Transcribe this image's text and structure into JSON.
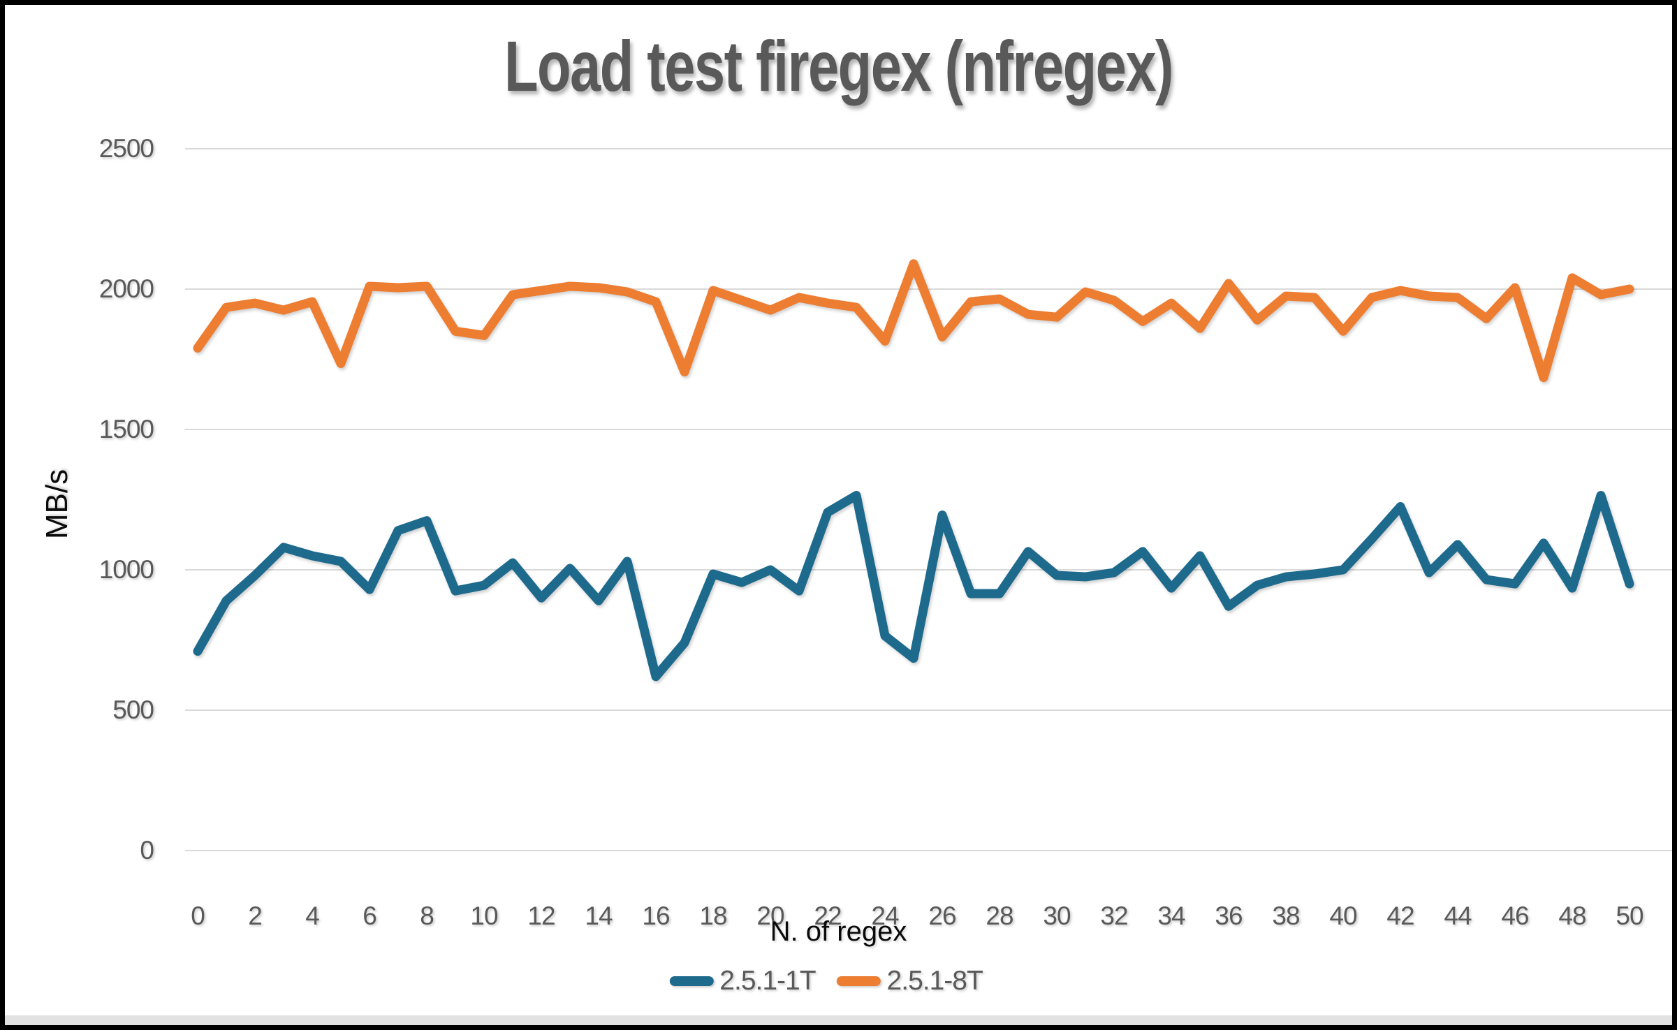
{
  "title": "Load test firegex (nfregex)",
  "axes": {
    "y_title": "MB/s",
    "x_title": "N. of regex"
  },
  "legend": {
    "item1": "2.5.1-1T",
    "item2": "2.5.1-8T"
  },
  "colors": {
    "teal_series": "#1E6A8D",
    "orange_series": "#ED7D31",
    "title_text": "#595959",
    "tick_text": "#595959",
    "axis_title_text": "#0a0a0a",
    "gridline": "#D9D9D9"
  },
  "chart_data": {
    "type": "line",
    "title": "Load test firegex (nfregex)",
    "xlabel": "N. of regex",
    "ylabel": "MB/s",
    "x_start": 0,
    "x_end": 50,
    "x_tick_step": 2,
    "x_tick_labels": [
      "0",
      "2",
      "4",
      "6",
      "8",
      "10",
      "12",
      "14",
      "16",
      "18",
      "20",
      "22",
      "24",
      "26",
      "28",
      "30",
      "32",
      "34",
      "36",
      "38",
      "40",
      "42",
      "44",
      "46",
      "48",
      "50"
    ],
    "y_ticks": [
      0,
      500,
      1000,
      1500,
      2000,
      2500
    ],
    "ylim": [
      0,
      2500
    ],
    "grid": "horizontal",
    "legend_position": "bottom",
    "series": [
      {
        "name": "2.5.1-1T",
        "color": "#1E6A8D",
        "values": [
          710,
          890,
          980,
          1080,
          1050,
          1030,
          930,
          1140,
          1175,
          925,
          945,
          1025,
          900,
          1005,
          890,
          1030,
          620,
          740,
          985,
          955,
          1000,
          925,
          1205,
          1265,
          765,
          685,
          1195,
          915,
          915,
          1065,
          980,
          975,
          990,
          1065,
          935,
          1050,
          870,
          945,
          975,
          985,
          1000,
          1110,
          1225,
          990,
          1090,
          965,
          950,
          1095,
          935,
          1265,
          950
        ]
      },
      {
        "name": "2.5.1-8T",
        "color": "#ED7D31",
        "values": [
          1790,
          1935,
          1950,
          1925,
          1955,
          1735,
          2010,
          2005,
          2010,
          1850,
          1835,
          1980,
          1995,
          2010,
          2005,
          1990,
          1955,
          1705,
          1995,
          1960,
          1925,
          1970,
          1950,
          1935,
          1815,
          2090,
          1830,
          1955,
          1965,
          1910,
          1900,
          1990,
          1960,
          1885,
          1950,
          1860,
          2020,
          1890,
          1975,
          1970,
          1850,
          1970,
          1995,
          1975,
          1970,
          1895,
          2005,
          1685,
          2040,
          1980,
          2000
        ]
      }
    ]
  }
}
